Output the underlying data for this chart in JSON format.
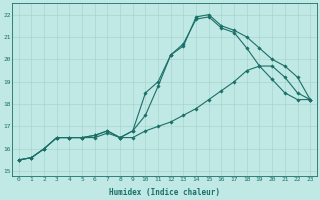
{
  "xlabel": "Humidex (Indice chaleur)",
  "bg_color": "#c0e8e4",
  "grid_color": "#a8d4d0",
  "line_color": "#1a7068",
  "xlim_min": -0.5,
  "xlim_max": 23.5,
  "ylim_min": 14.8,
  "ylim_max": 22.5,
  "yticks": [
    15,
    16,
    17,
    18,
    19,
    20,
    21,
    22
  ],
  "xticks": [
    0,
    1,
    2,
    3,
    4,
    5,
    6,
    7,
    8,
    9,
    10,
    11,
    12,
    13,
    14,
    15,
    16,
    17,
    18,
    19,
    20,
    21,
    22,
    23
  ],
  "line1_x": [
    0,
    1,
    2,
    3,
    4,
    5,
    6,
    7,
    8,
    9,
    10,
    11,
    12,
    13,
    14,
    15,
    16,
    17,
    18,
    19,
    20,
    21,
    22,
    23
  ],
  "line1_y": [
    15.5,
    15.6,
    16.0,
    16.5,
    16.5,
    16.5,
    16.5,
    16.7,
    16.5,
    16.5,
    16.8,
    17.0,
    17.2,
    17.5,
    17.8,
    18.2,
    18.6,
    19.0,
    19.5,
    19.7,
    19.7,
    19.2,
    18.5,
    18.2
  ],
  "line2_x": [
    0,
    1,
    2,
    3,
    4,
    5,
    6,
    7,
    8,
    9,
    10,
    11,
    12,
    13,
    14,
    15,
    16,
    17,
    18,
    19,
    20,
    21,
    22,
    23
  ],
  "line2_y": [
    15.5,
    15.6,
    16.0,
    16.5,
    16.5,
    16.5,
    16.6,
    16.8,
    16.5,
    16.8,
    18.5,
    19.0,
    20.2,
    20.7,
    21.8,
    21.9,
    21.4,
    21.2,
    20.5,
    19.7,
    19.1,
    18.5,
    18.2,
    18.2
  ],
  "line3_x": [
    0,
    1,
    2,
    3,
    4,
    5,
    6,
    7,
    8,
    9,
    10,
    11,
    12,
    13,
    14,
    15,
    16,
    17,
    18,
    19,
    20,
    21,
    22,
    23
  ],
  "line3_y": [
    15.5,
    15.6,
    16.0,
    16.5,
    16.5,
    16.5,
    16.6,
    16.8,
    16.5,
    16.8,
    17.5,
    18.8,
    20.2,
    20.6,
    21.9,
    22.0,
    21.5,
    21.3,
    21.0,
    20.5,
    20.0,
    19.7,
    19.2,
    18.2
  ]
}
